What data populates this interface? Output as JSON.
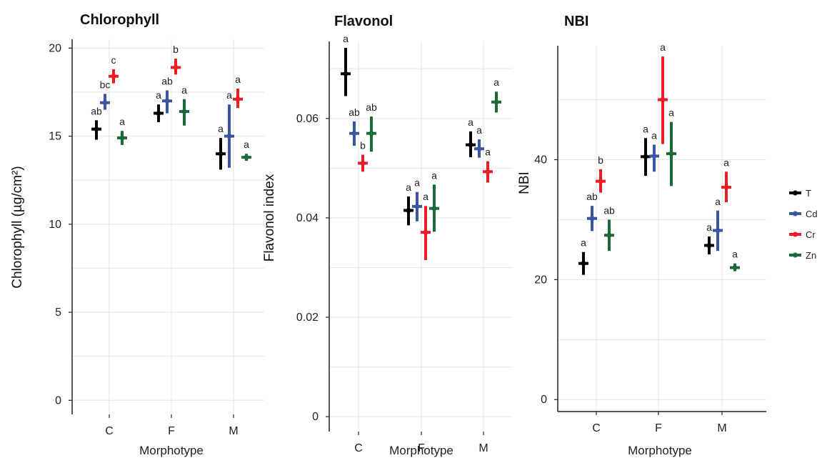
{
  "chart_data": [
    {
      "type": "scatter",
      "title": "Chlorophyll",
      "xlabel": "Morphotype",
      "ylabel": "Chlorophyll (µg/cm²)",
      "categories": [
        "C",
        "F",
        "M"
      ],
      "ylim": [
        -0.8,
        20.5
      ],
      "yticks": [
        0,
        5,
        10,
        15,
        20
      ],
      "ytick_labels": [
        "0",
        "5",
        "10",
        "15",
        "20"
      ],
      "grid": true,
      "series": [
        {
          "name": "T",
          "mean": [
            15.4,
            16.3,
            14.0
          ],
          "lower": [
            14.8,
            15.8,
            13.1
          ],
          "upper": [
            15.9,
            16.8,
            14.9
          ],
          "letters": [
            "ab",
            "a",
            "a"
          ]
        },
        {
          "name": "Cd",
          "mean": [
            16.9,
            17.0,
            15.0
          ],
          "lower": [
            16.5,
            16.3,
            13.2
          ],
          "upper": [
            17.4,
            17.6,
            16.8
          ],
          "letters": [
            "bc",
            "ab",
            "a"
          ]
        },
        {
          "name": "Cr",
          "mean": [
            18.4,
            18.9,
            17.1
          ],
          "lower": [
            18.0,
            18.5,
            16.6
          ],
          "upper": [
            18.8,
            19.4,
            17.7
          ],
          "letters": [
            "c",
            "b",
            "a"
          ]
        },
        {
          "name": "Zn",
          "mean": [
            14.9,
            16.4,
            13.8
          ],
          "lower": [
            14.5,
            15.6,
            13.6
          ],
          "upper": [
            15.3,
            17.1,
            14.0
          ],
          "letters": [
            "a",
            "a",
            "a"
          ]
        }
      ]
    },
    {
      "type": "scatter",
      "title": "Flavonol",
      "xlabel": "Morphotype",
      "ylabel": "Flavonol index",
      "categories": [
        "C",
        "F",
        "M"
      ],
      "ylim": [
        -0.003,
        0.0755
      ],
      "yticks": [
        0,
        0.02,
        0.04,
        0.06
      ],
      "ytick_labels": [
        "0",
        "0.02",
        "0.04",
        "0.06"
      ],
      "grid": true,
      "series": [
        {
          "name": "T",
          "mean": [
            0.069,
            0.0415,
            0.0547
          ],
          "lower": [
            0.0645,
            0.0385,
            0.0522
          ],
          "upper": [
            0.0742,
            0.0443,
            0.0574
          ],
          "letters": [
            "a",
            "a",
            "a"
          ]
        },
        {
          "name": "Cd",
          "mean": [
            0.057,
            0.0423,
            0.0539
          ],
          "lower": [
            0.0545,
            0.0393,
            0.0521
          ],
          "upper": [
            0.0594,
            0.0452,
            0.0558
          ],
          "letters": [
            "ab",
            "a",
            "a"
          ]
        },
        {
          "name": "Cr",
          "mean": [
            0.051,
            0.0371,
            0.0493
          ],
          "lower": [
            0.0493,
            0.0315,
            0.0471
          ],
          "upper": [
            0.0527,
            0.0424,
            0.0514
          ],
          "letters": [
            "b",
            "a",
            "a"
          ]
        },
        {
          "name": "Zn",
          "mean": [
            0.057,
            0.0419,
            0.0633
          ],
          "lower": [
            0.0533,
            0.0372,
            0.0612
          ],
          "upper": [
            0.0604,
            0.0467,
            0.0654
          ],
          "letters": [
            "ab",
            "a",
            "a"
          ]
        }
      ]
    },
    {
      "type": "scatter",
      "title": "NBI",
      "xlabel": "Morphotype",
      "ylabel": "NBI",
      "categories": [
        "C",
        "F",
        "M"
      ],
      "ylim": [
        -2.0,
        59.0
      ],
      "yticks": [
        0,
        20,
        40
      ],
      "ytick_labels": [
        "0",
        "20",
        "40"
      ],
      "grid": true,
      "series": [
        {
          "name": "T",
          "mean": [
            22.7,
            40.5,
            25.7
          ],
          "lower": [
            20.8,
            37.3,
            24.2
          ],
          "upper": [
            24.6,
            43.6,
            27.2
          ],
          "letters": [
            "a",
            "a",
            "a"
          ]
        },
        {
          "name": "Cd",
          "mean": [
            30.2,
            40.6,
            28.2
          ],
          "lower": [
            28.1,
            38.0,
            24.8
          ],
          "upper": [
            32.3,
            42.5,
            31.5
          ],
          "letters": [
            "ab",
            "a",
            "a"
          ]
        },
        {
          "name": "Cr",
          "mean": [
            36.4,
            50.0,
            35.4
          ],
          "lower": [
            34.5,
            42.6,
            32.9
          ],
          "upper": [
            38.4,
            57.2,
            38.0
          ],
          "letters": [
            "b",
            "a",
            "a"
          ]
        },
        {
          "name": "Zn",
          "mean": [
            27.4,
            41.0,
            22.0
          ],
          "lower": [
            24.8,
            35.6,
            21.4
          ],
          "upper": [
            30.0,
            46.3,
            22.7
          ],
          "letters": [
            "ab",
            "a",
            "a"
          ]
        }
      ]
    }
  ],
  "legend": {
    "placement": "right",
    "entries": [
      {
        "label": "T",
        "color": "#000000"
      },
      {
        "label": "Cd",
        "color": "#3a55a4"
      },
      {
        "label": "Cr",
        "color": "#ed1c24"
      },
      {
        "label": "Zn",
        "color": "#1a6b37"
      }
    ]
  },
  "colors": {
    "T": "#000000",
    "Cd": "#3a55a4",
    "Cr": "#ed1c24",
    "Zn": "#1a6b37"
  }
}
